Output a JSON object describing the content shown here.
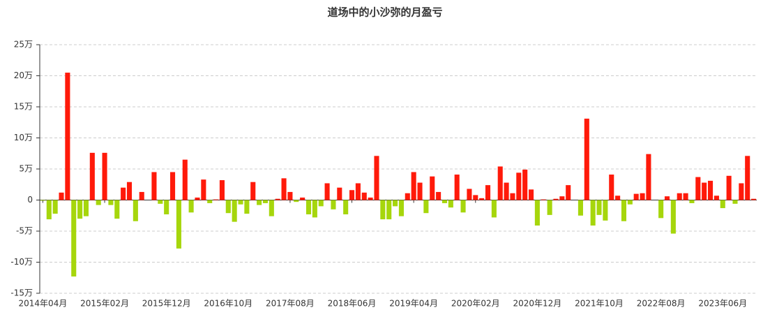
{
  "chart_data": {
    "type": "bar",
    "title": "道场中的小沙弥的月盈亏",
    "categories": [
      "2014年04月",
      null,
      null,
      null,
      null,
      null,
      null,
      null,
      null,
      null,
      "2015年02月",
      null,
      null,
      null,
      null,
      null,
      null,
      null,
      null,
      null,
      "2015年12月",
      null,
      null,
      null,
      null,
      null,
      null,
      null,
      null,
      null,
      "2016年10月",
      null,
      null,
      null,
      null,
      null,
      null,
      null,
      null,
      null,
      "2017年08月",
      null,
      null,
      null,
      null,
      null,
      null,
      null,
      null,
      null,
      "2018年06月",
      null,
      null,
      null,
      null,
      null,
      null,
      null,
      null,
      null,
      "2019年04月",
      null,
      null,
      null,
      null,
      null,
      null,
      null,
      null,
      null,
      "2020年02月",
      null,
      null,
      null,
      null,
      null,
      null,
      null,
      null,
      null,
      "2020年12月",
      null,
      null,
      null,
      null,
      null,
      null,
      null,
      null,
      null,
      "2021年10月",
      null,
      null,
      null,
      null,
      null,
      null,
      null,
      null,
      null,
      "2022年08月",
      null,
      null,
      null,
      null,
      null,
      null,
      null,
      null,
      null,
      "2023年06月",
      null,
      null,
      null,
      null,
      null
    ],
    "values": [
      -0.1,
      -3.1,
      -2.2,
      1.2,
      20.5,
      -12.3,
      -3,
      -2.6,
      7.6,
      -0.8,
      7.6,
      -0.8,
      -3,
      2,
      2.9,
      -3.4,
      1.3,
      0,
      4.5,
      -0.6,
      -2.3,
      4.5,
      -7.8,
      6.5,
      -2,
      0.4,
      3.3,
      -0.5,
      0.1,
      3.2,
      -2.1,
      -3.5,
      -0.7,
      -2.2,
      2.9,
      -0.8,
      -0.5,
      -2.6,
      0.2,
      3.5,
      1.3,
      -0.3,
      0.4,
      -2.3,
      -2.8,
      -1,
      2.7,
      -1.5,
      2,
      -2.3,
      1.6,
      2.7,
      1.2,
      0.4,
      7.1,
      -3.1,
      -3.1,
      -1,
      -2.6,
      1.1,
      4.5,
      2.8,
      -2.1,
      3.8,
      1.3,
      -0.5,
      -1.2,
      4.1,
      -2,
      1.8,
      0.8,
      0.3,
      2.4,
      -2.8,
      5.4,
      2.8,
      1.1,
      4.4,
      4.9,
      1.7,
      -4.1,
      0.1,
      -2.4,
      0.2,
      0.6,
      2.4,
      0,
      -2.5,
      13.1,
      -4.1,
      -2.4,
      -3.3,
      4.1,
      0.7,
      -3.4,
      -0.7,
      1,
      1.1,
      7.4,
      0,
      -2.9,
      0.6,
      -5.4,
      1.1,
      1.1,
      -0.5,
      3.7,
      2.8,
      3.1,
      0.7,
      -1.3,
      3.9,
      -0.6,
      2.7,
      7.1,
      0.2
    ],
    "positive_color": "#ff1a0a",
    "negative_color": "#a6d60c",
    "ylim": [
      -15,
      25
    ],
    "yticks": [
      {
        "value": -15,
        "label": "-15万"
      },
      {
        "value": -10,
        "label": "-10万"
      },
      {
        "value": -5,
        "label": "-5万"
      },
      {
        "value": 0,
        "label": "0"
      },
      {
        "value": 5,
        "label": "5万"
      },
      {
        "value": 10,
        "label": "10万"
      },
      {
        "value": 15,
        "label": "15万"
      },
      {
        "value": 20,
        "label": "20万"
      },
      {
        "value": 25,
        "label": "25万"
      }
    ],
    "grid": true
  }
}
